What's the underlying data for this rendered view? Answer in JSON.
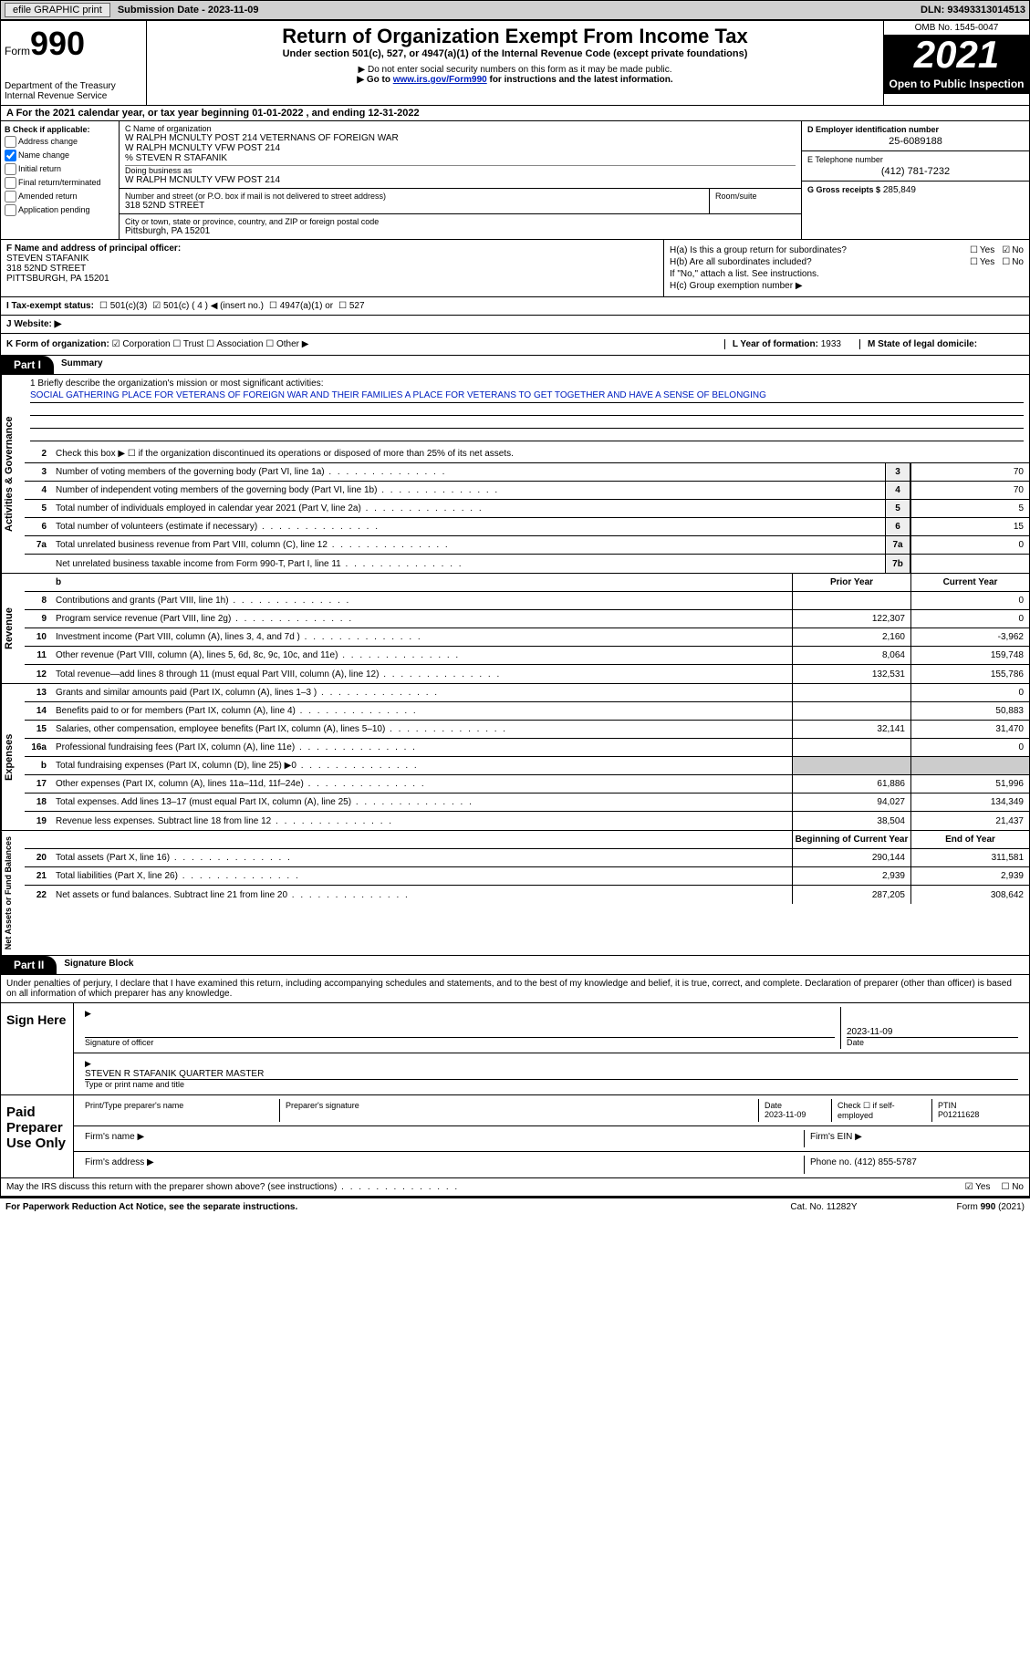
{
  "toolbar": {
    "efile": "efile GRAPHIC print",
    "subdate_label": "Submission Date - 2023-11-09",
    "dln": "DLN: 93493313014513"
  },
  "header": {
    "form_prefix": "Form",
    "form_number": "990",
    "dept": "Department of the Treasury",
    "irs": "Internal Revenue Service",
    "title": "Return of Organization Exempt From Income Tax",
    "subtitle": "Under section 501(c), 527, or 4947(a)(1) of the Internal Revenue Code (except private foundations)",
    "note1": "▶ Do not enter social security numbers on this form as it may be made public.",
    "note2_pre": "▶ Go to ",
    "note2_link": "www.irs.gov/Form990",
    "note2_post": " for instructions and the latest information.",
    "omb": "OMB No. 1545-0047",
    "year": "2021",
    "open": "Open to Public Inspection"
  },
  "row_a": "A For the 2021 calendar year, or tax year beginning 01-01-2022   , and ending 12-31-2022",
  "box_b": {
    "title": "B Check if applicable:",
    "items": [
      "Address change",
      "Name change",
      "Final return/terminated",
      "Initial return",
      "Amended return",
      "Application pending"
    ],
    "checked_index": 1
  },
  "box_c": {
    "label": "C Name of organization",
    "line1": "W RALPH MCNULTY POST 214 VETERNANS OF FOREIGN WAR",
    "line2": "W RALPH MCNULTY VFW POST 214",
    "line3": "% STEVEN R STAFANIK",
    "dba_label": "Doing business as",
    "dba": "W RALPH MCNULTY VFW POST 214",
    "street_label": "Number and street (or P.O. box if mail is not delivered to street address)",
    "street": "318 52ND STREET",
    "room_label": "Room/suite",
    "city_label": "City or town, state or province, country, and ZIP or foreign postal code",
    "city": "Pittsburgh, PA  15201"
  },
  "box_d": {
    "label": "D Employer identification number",
    "value": "25-6089188"
  },
  "box_e": {
    "label": "E Telephone number",
    "value": "(412) 781-7232"
  },
  "box_g": {
    "label": "G Gross receipts $",
    "value": "285,849"
  },
  "box_f": {
    "label": "F  Name and address of principal officer:",
    "name": "STEVEN STAFANIK",
    "street": "318 52ND STREET",
    "city": "PITTSBURGH, PA  15201"
  },
  "box_h": {
    "ha": "H(a)  Is this a group return for subordinates?",
    "hb": "H(b)  Are all subordinates included?",
    "hb_note": "If \"No,\" attach a list. See instructions.",
    "hc": "H(c)  Group exemption number ▶",
    "yes": "Yes",
    "no": "No"
  },
  "row_i": {
    "label": "I  Tax-exempt status:",
    "opts": [
      "501(c)(3)",
      "501(c) ( 4 ) ◀ (insert no.)",
      "4947(a)(1) or",
      "527"
    ]
  },
  "row_j": {
    "label": "J  Website: ▶"
  },
  "row_k": {
    "label": "K Form of organization:",
    "opts": [
      "Corporation",
      "Trust",
      "Association",
      "Other ▶"
    ]
  },
  "row_l": {
    "label": "L Year of formation:",
    "value": "1933"
  },
  "row_m": {
    "label": "M State of legal domicile:"
  },
  "part1": {
    "tag": "Part I",
    "title": "Summary"
  },
  "summary": {
    "q1_label": "1   Briefly describe the organization's mission or most significant activities:",
    "q1_text": "SOCIAL GATHERING PLACE FOR VETERANS OF FOREIGN WAR AND THEIR FAMILIES A PLACE FOR VETERANS TO GET TOGETHER AND HAVE A SENSE OF BELONGING",
    "q2": "Check this box ▶ ☐  if the organization discontinued its operations or disposed of more than 25% of its net assets.",
    "sections": {
      "ag": "Activities & Governance",
      "rev": "Revenue",
      "exp": "Expenses",
      "net": "Net Assets or Fund Balances"
    },
    "prior_label": "Prior Year",
    "current_label": "Current Year",
    "boy_label": "Beginning of Current Year",
    "eoy_label": "End of Year",
    "lines_ag": [
      {
        "n": "3",
        "d": "Number of voting members of the governing body (Part VI, line 1a)",
        "box": "3",
        "v": "70"
      },
      {
        "n": "4",
        "d": "Number of independent voting members of the governing body (Part VI, line 1b)",
        "box": "4",
        "v": "70"
      },
      {
        "n": "5",
        "d": "Total number of individuals employed in calendar year 2021 (Part V, line 2a)",
        "box": "5",
        "v": "5"
      },
      {
        "n": "6",
        "d": "Total number of volunteers (estimate if necessary)",
        "box": "6",
        "v": "15"
      },
      {
        "n": "7a",
        "d": "Total unrelated business revenue from Part VIII, column (C), line 12",
        "box": "7a",
        "v": "0"
      },
      {
        "n": "",
        "d": "Net unrelated business taxable income from Form 990-T, Part I, line 11",
        "box": "7b",
        "v": ""
      }
    ],
    "lines_rev": [
      {
        "n": "8",
        "d": "Contributions and grants (Part VIII, line 1h)",
        "p": "",
        "c": "0"
      },
      {
        "n": "9",
        "d": "Program service revenue (Part VIII, line 2g)",
        "p": "122,307",
        "c": "0"
      },
      {
        "n": "10",
        "d": "Investment income (Part VIII, column (A), lines 3, 4, and 7d )",
        "p": "2,160",
        "c": "-3,962"
      },
      {
        "n": "11",
        "d": "Other revenue (Part VIII, column (A), lines 5, 6d, 8c, 9c, 10c, and 11e)",
        "p": "8,064",
        "c": "159,748"
      },
      {
        "n": "12",
        "d": "Total revenue—add lines 8 through 11 (must equal Part VIII, column (A), line 12)",
        "p": "132,531",
        "c": "155,786"
      }
    ],
    "lines_exp": [
      {
        "n": "13",
        "d": "Grants and similar amounts paid (Part IX, column (A), lines 1–3 )",
        "p": "",
        "c": "0"
      },
      {
        "n": "14",
        "d": "Benefits paid to or for members (Part IX, column (A), line 4)",
        "p": "",
        "c": "50,883"
      },
      {
        "n": "15",
        "d": "Salaries, other compensation, employee benefits (Part IX, column (A), lines 5–10)",
        "p": "32,141",
        "c": "31,470"
      },
      {
        "n": "16a",
        "d": "Professional fundraising fees (Part IX, column (A), line 11e)",
        "p": "",
        "c": "0"
      },
      {
        "n": "b",
        "d": "Total fundraising expenses (Part IX, column (D), line 25) ▶0",
        "p": "shade",
        "c": "shade"
      },
      {
        "n": "17",
        "d": "Other expenses (Part IX, column (A), lines 11a–11d, 11f–24e)",
        "p": "61,886",
        "c": "51,996"
      },
      {
        "n": "18",
        "d": "Total expenses. Add lines 13–17 (must equal Part IX, column (A), line 25)",
        "p": "94,027",
        "c": "134,349"
      },
      {
        "n": "19",
        "d": "Revenue less expenses. Subtract line 18 from line 12",
        "p": "38,504",
        "c": "21,437"
      }
    ],
    "lines_net": [
      {
        "n": "20",
        "d": "Total assets (Part X, line 16)",
        "p": "290,144",
        "c": "311,581"
      },
      {
        "n": "21",
        "d": "Total liabilities (Part X, line 26)",
        "p": "2,939",
        "c": "2,939"
      },
      {
        "n": "22",
        "d": "Net assets or fund balances. Subtract line 21 from line 20",
        "p": "287,205",
        "c": "308,642"
      }
    ]
  },
  "part2": {
    "tag": "Part II",
    "title": "Signature Block"
  },
  "sig": {
    "intro": "Under penalties of perjury, I declare that I have examined this return, including accompanying schedules and statements, and to the best of my knowledge and belief, it is true, correct, and complete. Declaration of preparer (other than officer) is based on all information of which preparer has any knowledge.",
    "sign_here": "Sign Here",
    "sig_officer": "Signature of officer",
    "date": "Date",
    "sig_date": "2023-11-09",
    "name_title": "STEVEN R STAFANIK  QUARTER MASTER",
    "type_name": "Type or print name and title",
    "paid": "Paid Preparer Use Only",
    "prep_name": "Print/Type preparer's name",
    "prep_sig": "Preparer's signature",
    "prep_date_lbl": "Date",
    "prep_date": "2023-11-09",
    "self_emp": "Check ☐ if self-employed",
    "ptin_lbl": "PTIN",
    "ptin": "P01211628",
    "firm_name": "Firm's name    ▶",
    "firm_ein": "Firm's EIN ▶",
    "firm_addr": "Firm's address ▶",
    "phone_lbl": "Phone no.",
    "phone": "(412) 855-5787"
  },
  "may_line": "May the IRS discuss this return with the preparer shown above? (see instructions)",
  "footer": {
    "left": "For Paperwork Reduction Act Notice, see the separate instructions.",
    "center": "Cat. No. 11282Y",
    "right": "Form 990 (2021)"
  }
}
